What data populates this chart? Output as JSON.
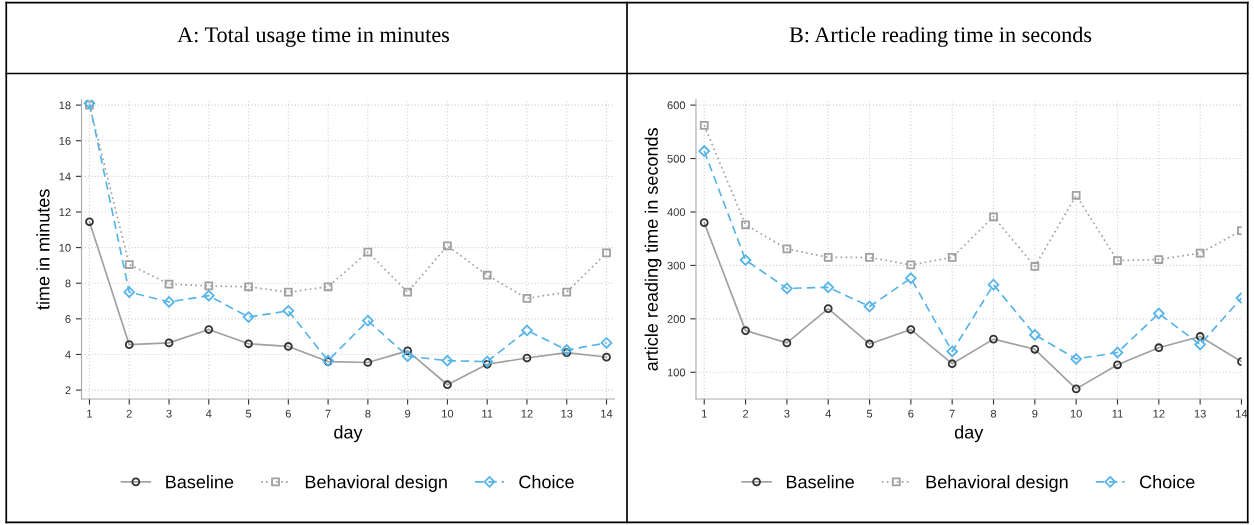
{
  "chart_data": [
    {
      "type": "line",
      "title": "A: Total usage time in minutes",
      "xlabel": "day",
      "ylabel": "time in minutes",
      "x": [
        1,
        2,
        3,
        4,
        5,
        6,
        7,
        8,
        9,
        10,
        11,
        12,
        13,
        14
      ],
      "xlim": [
        0.8,
        14.2
      ],
      "xticks": [
        1,
        2,
        3,
        4,
        5,
        6,
        7,
        8,
        9,
        10,
        11,
        12,
        13,
        14
      ],
      "ylim": [
        1.5,
        18.3
      ],
      "yticks": [
        2,
        4,
        6,
        8,
        10,
        12,
        14,
        16,
        18
      ],
      "grid": true,
      "legend": "bottom",
      "series": [
        {
          "name": "Baseline",
          "color": "#a0a0a0",
          "marker": "circle",
          "line_style": "solid",
          "values": [
            11.45,
            4.55,
            4.65,
            5.4,
            4.6,
            4.45,
            3.6,
            3.55,
            4.2,
            2.3,
            3.45,
            3.8,
            4.1,
            3.85
          ]
        },
        {
          "name": "Behavioral design",
          "color": "#a0a0a0",
          "marker": "square",
          "line_style": "dotted",
          "values": [
            18.0,
            9.05,
            7.95,
            7.85,
            7.8,
            7.5,
            7.8,
            9.75,
            7.5,
            10.1,
            8.45,
            7.15,
            7.5,
            9.7
          ]
        },
        {
          "name": "Choice",
          "color": "#56b4e9",
          "marker": "diamond",
          "line_style": "dashed",
          "values": [
            18.1,
            7.5,
            6.95,
            7.3,
            6.1,
            6.45,
            3.65,
            5.9,
            3.9,
            3.65,
            3.6,
            5.35,
            4.25,
            4.65
          ]
        }
      ]
    },
    {
      "type": "line",
      "title": "B: Article reading time in seconds",
      "xlabel": "day",
      "ylabel": "article reading time in seconds",
      "x": [
        1,
        2,
        3,
        4,
        5,
        6,
        7,
        8,
        9,
        10,
        11,
        12,
        13,
        14
      ],
      "xlim": [
        0.8,
        14.0
      ],
      "xticks": [
        1,
        2,
        3,
        4,
        5,
        6,
        7,
        8,
        9,
        10,
        11,
        12,
        13,
        14
      ],
      "ylim": [
        50,
        610
      ],
      "yticks": [
        100,
        200,
        300,
        400,
        500,
        600
      ],
      "grid": true,
      "legend": "bottom",
      "series": [
        {
          "name": "Baseline",
          "color": "#a0a0a0",
          "marker": "circle",
          "line_style": "solid",
          "values": [
            380,
            178,
            155,
            219,
            153,
            180,
            116,
            162,
            143,
            69,
            114,
            146,
            167,
            120
          ]
        },
        {
          "name": "Behavioral design",
          "color": "#a0a0a0",
          "marker": "square",
          "line_style": "dotted",
          "values": [
            562,
            376,
            331,
            315,
            315,
            301,
            315,
            391,
            298,
            431,
            309,
            311,
            323,
            365
          ]
        },
        {
          "name": "Choice",
          "color": "#56b4e9",
          "marker": "diamond",
          "line_style": "dashed",
          "values": [
            514,
            310,
            257,
            259,
            223,
            276,
            139,
            264,
            170,
            125,
            137,
            210,
            152,
            239
          ]
        }
      ]
    }
  ]
}
